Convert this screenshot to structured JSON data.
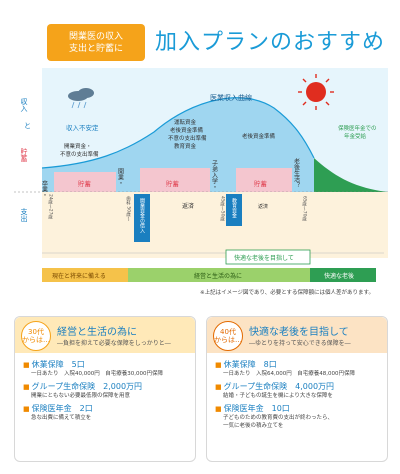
{
  "header": {
    "badge_line1": "関業医の収入",
    "badge_line2": "支出と貯蓄に",
    "title": "加入プランのおすすめ"
  },
  "chart": {
    "axis_top": "収入",
    "axis_to": "と",
    "axis_savings": "貯蓄",
    "axis_bottom": "支出",
    "curve_label": "医業収入曲線",
    "unstable_label": "収入不安定",
    "early_note_1": "開業資金・",
    "early_note_2": "不意の支出準備",
    "mid_notes": [
      "運転資金",
      "老後資金準備",
      "不意の支出準備",
      "教育資金"
    ],
    "mid_right_note": "老後資金準備",
    "pension_label_1": "保険医年金での",
    "pension_label_2": "年金受給",
    "savings_labels": [
      "貯蓄",
      "貯蓄",
      "貯蓄"
    ],
    "milestone_graduate": "卒業・",
    "milestone_opening": "開業・",
    "milestone_child": "子弟入学・",
    "milestone_retire": "老後生活？",
    "age_graduate": "24歳〜27歳",
    "age_opening": "歯科 50歳〜",
    "age_child": "45歳〜50歳",
    "age_retire": "65歳〜70歳",
    "loan_label": "開業資金の借入",
    "education_label": "教育資金",
    "repay_label": "返済",
    "repay_side_label": "返済",
    "band_left": "現在と将来に備える",
    "band_middle": "経営と生活の為に",
    "band_comfort": "快適な老後を目指して",
    "band_right": "快適な老後"
  },
  "note": "※上記はイメージ図であり、必要とする保障額には個人差があります。",
  "cards": [
    {
      "age_num": "30代",
      "age_suffix": "からは…",
      "title": "経営と生活の為に",
      "subtitle": "―負担を抑えて必要な保障をしっかりと―",
      "items": [
        {
          "name": "休業保障　5口",
          "desc1": "一日あたり　入院40,000円　自宅療養30,000円保障",
          "desc2": ""
        },
        {
          "name": "グループ生命保険　2,000万円",
          "desc1": "開業にともない必要最低限の保障を用意",
          "desc2": ""
        },
        {
          "name": "保険医年金　2口",
          "desc1": "急な出費に備えて積立を",
          "desc2": ""
        }
      ]
    },
    {
      "age_num": "40代",
      "age_suffix": "からは…",
      "title": "快適な老後を目指して",
      "subtitle": "―ゆとりを持って安心できる保障を―",
      "items": [
        {
          "name": "休業保障　8口",
          "desc1": "一日あたり　入院64,000円　自宅療養48,000円保障",
          "desc2": ""
        },
        {
          "name": "グループ生命保険　4,000万円",
          "desc1": "結婚・子どもの誕生を機により大きな保障を",
          "desc2": ""
        },
        {
          "name": "保険医年金　10口",
          "desc1": "子どものための教育費の支出が終わったら、",
          "desc2": "一気に老後の積み立てを"
        }
      ]
    }
  ],
  "colors": {
    "accent": "#1a9bd7",
    "orange": "#f5a31a",
    "pink": "#f4c6cf",
    "green": "#2e9e53",
    "sky": "#c5e8f7"
  }
}
